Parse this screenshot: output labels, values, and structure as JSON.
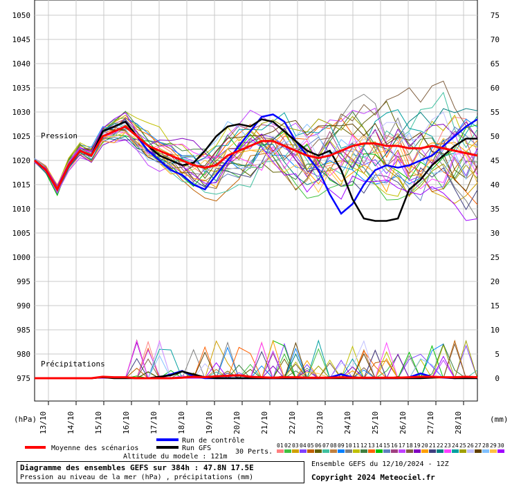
{
  "chart_data": {
    "type": "line",
    "title": "Diagramme des ensembles GEFS sur 384h : 47.8N 17.5E",
    "subtitle": "Pression au niveau de la mer (hPa) , précipitations (mm)",
    "ylabel_left": "(hPa)",
    "ylabel_right": "(mm)",
    "ylim_left": [
      970,
      1050
    ],
    "ylim_right": [
      -5,
      75
    ],
    "grid": true,
    "left_ticks": [
      "1050",
      "1045",
      "1040",
      "1035",
      "1030",
      "1025",
      "1020",
      "1015",
      "1010",
      "1005",
      "1000",
      "995",
      "990",
      "985",
      "980",
      "975"
    ],
    "right_ticks": [
      "75",
      "70",
      "65",
      "60",
      "55",
      "50",
      "45",
      "40",
      "35",
      "30",
      "25",
      "20",
      "15",
      "10",
      "5",
      "0"
    ],
    "x_labels": [
      "13/10",
      "14/10",
      "15/10",
      "16/10",
      "17/10",
      "18/10",
      "19/10",
      "20/10",
      "21/10",
      "22/10",
      "23/10",
      "24/10",
      "25/10",
      "26/10",
      "27/10",
      "28/10"
    ],
    "section_labels": {
      "pressure": "Pression",
      "precip": "Précipitations"
    },
    "x_hours_step": 6,
    "series": [
      {
        "name": "Moyenne des scénarios",
        "color": "#ff0000",
        "pressure": [
          1020,
          1018,
          1014,
          1019,
          1022,
          1021,
          1025,
          1026,
          1027,
          1025,
          1023,
          1022,
          1021,
          1020,
          1019,
          1018.5,
          1019,
          1021,
          1022,
          1023,
          1024,
          1024,
          1023,
          1022,
          1021,
          1020.5,
          1021,
          1022,
          1023,
          1023.5,
          1023.5,
          1023,
          1023,
          1022.5,
          1022.5,
          1023,
          1022.5,
          1022,
          1021.5,
          1021
        ],
        "precip": [
          0,
          0,
          0,
          0,
          0,
          0,
          0.3,
          0.2,
          0.2,
          0,
          0,
          0,
          0,
          0.1,
          0.3,
          0.2,
          0.4,
          0.5,
          0.6,
          0.3,
          0.2,
          0.1,
          0.2,
          0.2,
          0.1,
          0.1,
          0.1,
          0.2,
          0.1,
          0.1,
          0.1,
          0.1,
          0.1,
          0.2,
          0.3,
          0.3,
          0.2,
          0.2,
          0.3,
          0.2
        ]
      },
      {
        "name": "Run de contrôle",
        "color": "#0000ff",
        "pressure": [
          1020,
          1018,
          1014,
          1019,
          1022,
          1021,
          1026,
          1027,
          1028,
          1025,
          1022,
          1020,
          1018,
          1017,
          1015,
          1014,
          1017,
          1020,
          1023,
          1026,
          1029,
          1029.5,
          1028,
          1024,
          1021,
          1018,
          1013,
          1009,
          1011,
          1015,
          1018,
          1019,
          1018.5,
          1019,
          1020,
          1021,
          1023,
          1025,
          1027,
          1028.5
        ],
        "precip": [
          0,
          0,
          0,
          0,
          0,
          0,
          0.2,
          0.1,
          0.1,
          0,
          0,
          0.2,
          0.8,
          1.5,
          0.4,
          0,
          0,
          0,
          0,
          0,
          0,
          0,
          0,
          0,
          0,
          0,
          0.2,
          0.8,
          0.2,
          0,
          0,
          0,
          0,
          0.2,
          1,
          0.3,
          0.1,
          0,
          0.2,
          0
        ]
      },
      {
        "name": "Run GFS",
        "color": "#000000",
        "pressure": [
          1020,
          1018,
          1014,
          1019,
          1022,
          1021,
          1026,
          1027,
          1028,
          1025,
          1023,
          1021,
          1020,
          1019,
          1019.5,
          1022,
          1025,
          1027,
          1027.5,
          1027,
          1028.5,
          1028,
          1026,
          1024,
          1022,
          1021,
          1022,
          1018,
          1012,
          1008,
          1007.5,
          1007.5,
          1008,
          1014,
          1016,
          1019,
          1021,
          1023,
          1024.5,
          1024.5
        ],
        "precip": [
          0,
          0,
          0,
          0,
          0,
          0,
          0.2,
          0,
          0,
          0,
          0,
          0.3,
          0.6,
          1.4,
          0.8,
          0.2,
          0,
          0,
          0,
          0,
          0,
          0,
          0,
          0,
          0,
          0,
          0,
          0,
          0,
          0,
          0,
          0,
          0,
          0,
          0,
          0.1,
          0.2,
          0,
          0,
          0
        ]
      }
    ],
    "member_colors": [
      "#ff8080",
      "#40c040",
      "#d0a000",
      "#8040ff",
      "#c06000",
      "#606000",
      "#40c0a0",
      "#c08040",
      "#0080ff",
      "#808080",
      "#c0c000",
      "#408040",
      "#ff6000",
      "#00c000",
      "#6080c0",
      "#a04080",
      "#c040ff",
      "#806040",
      "#8000c0",
      "#ffa000",
      "#404080",
      "#008080",
      "#ff40ff",
      "#00a0a0",
      "#a0a000",
      "#c0c0ff",
      "#604000",
      "#80c0ff",
      "#ffc040",
      "#a000ff"
    ],
    "legend": {
      "mean": "Moyenne des scénarios",
      "control": "Run de contrôle",
      "gfs": "Run GFS",
      "perts": "30 Perts.",
      "member_numbers": [
        "01",
        "02",
        "03",
        "04",
        "05",
        "06",
        "07",
        "08",
        "09",
        "10",
        "11",
        "12",
        "13",
        "14",
        "15",
        "16",
        "17",
        "18",
        "19",
        "20",
        "21",
        "22",
        "23",
        "24",
        "25",
        "26",
        "27",
        "28",
        "29",
        "30"
      ]
    }
  },
  "footer": {
    "altitude": "Altitude du modele : 121m",
    "title": "Diagramme des ensembles GEFS sur 384h : 47.8N 17.5E",
    "subtitle": "Pression au niveau de la mer (hPa) , précipitations (mm)",
    "run_info": "Ensemble GEFS du 12/10/2024 - 12Z",
    "copyright": "Copyright 2024 Meteociel.fr"
  }
}
